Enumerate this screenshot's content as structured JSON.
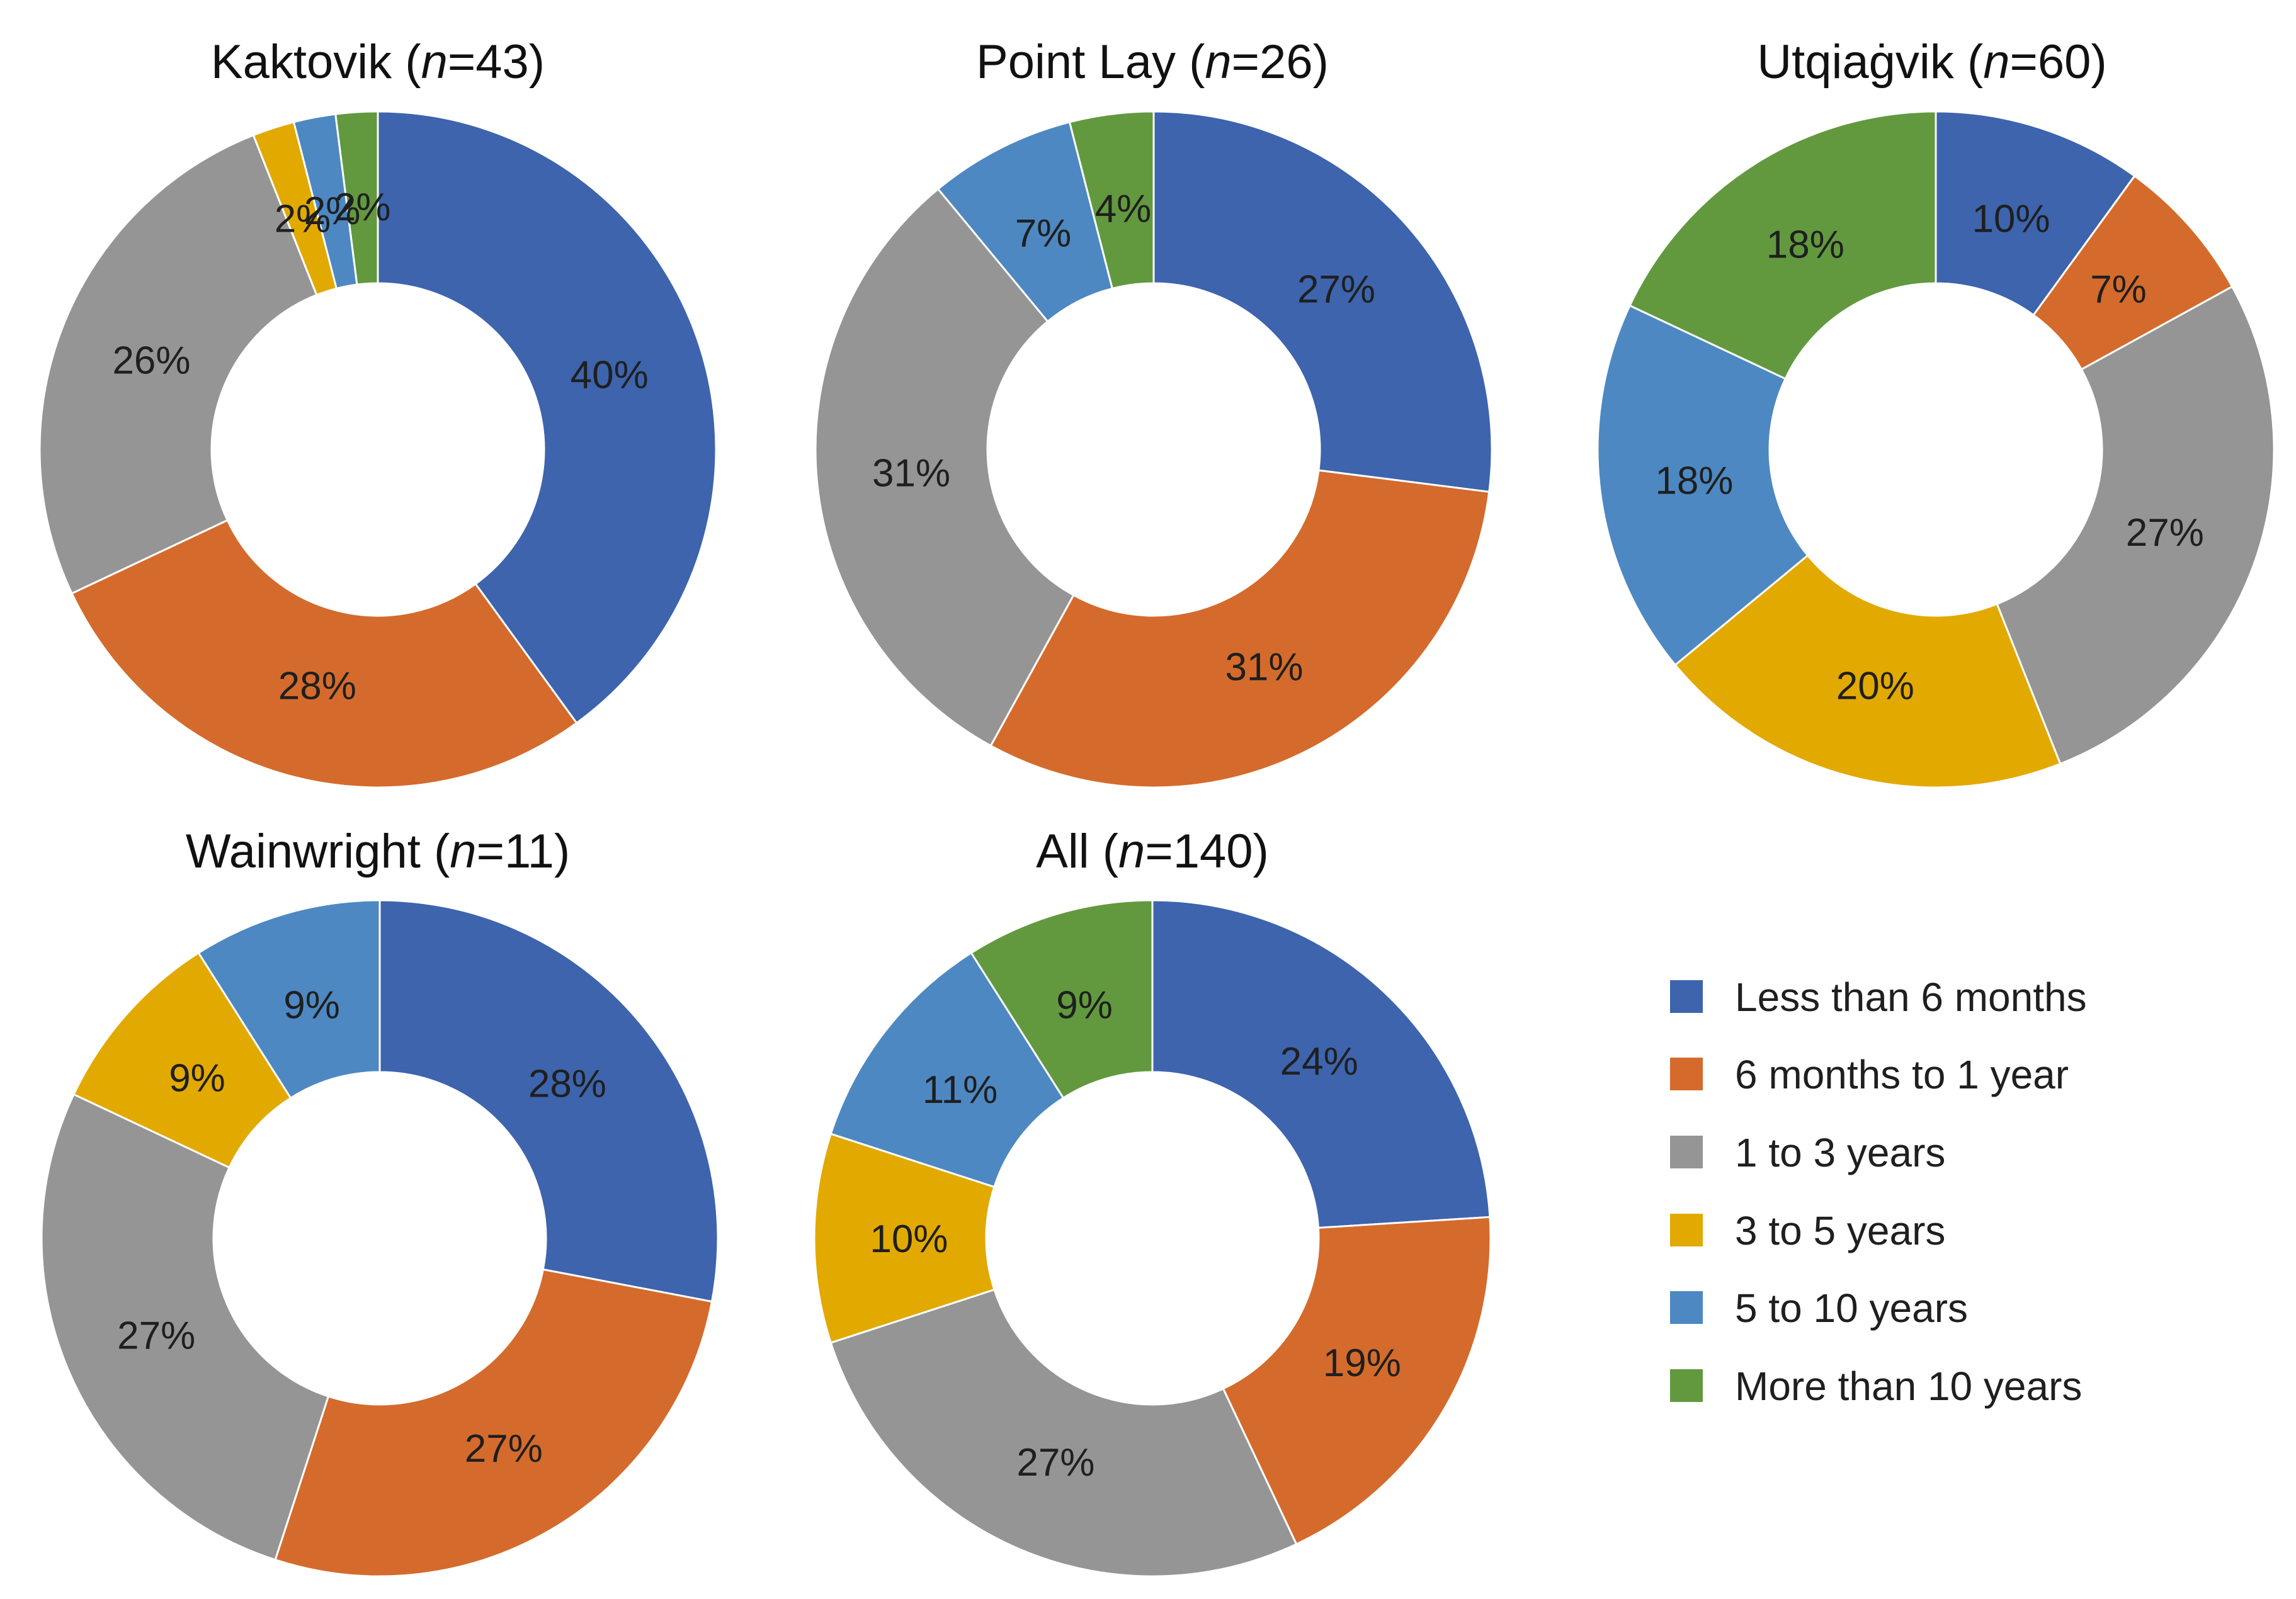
{
  "chart_data": {
    "type": "donut",
    "legend": {
      "placement": "bottom-right",
      "entries": [
        {
          "label": "Less than 6 months",
          "color": "#3d64ad"
        },
        {
          "label": "6 months to 1 year",
          "color": "#d46b2c"
        },
        {
          "label": "1 to 3 years",
          "color": "#959595"
        },
        {
          "label": "3 to 5 years",
          "color": "#e2a900"
        },
        {
          "label": "5 to 10 years",
          "color": "#4d88c2"
        },
        {
          "label": "More than 10 years",
          "color": "#62993e"
        }
      ]
    },
    "charts": [
      {
        "title_prefix": "Kaktovik (",
        "title_var": "n",
        "title_suffix": "=43)",
        "n": 43,
        "values": [
          40,
          28,
          26,
          2,
          2,
          2
        ],
        "labels": [
          "40%",
          "28%",
          "26%",
          "2%",
          "2%",
          "2%"
        ]
      },
      {
        "title_prefix": "Point Lay (",
        "title_var": "n",
        "title_suffix": "=26)",
        "n": 26,
        "values": [
          27,
          31,
          31,
          0,
          7,
          4
        ],
        "labels": [
          "27%",
          "31%",
          "31%",
          "",
          "7%",
          "4%"
        ]
      },
      {
        "title_prefix": "Utqiaġvik (",
        "title_var": "n",
        "title_suffix": "=60)",
        "n": 60,
        "values": [
          10,
          7,
          27,
          20,
          18,
          18
        ],
        "labels": [
          "10%",
          "7%",
          "27%",
          "20%",
          "18%",
          "18%"
        ]
      },
      {
        "title_prefix": "Wainwright (",
        "title_var": "n",
        "title_suffix": "=11)",
        "n": 11,
        "values": [
          28,
          27,
          27,
          9,
          9,
          0
        ],
        "labels": [
          "28%",
          "27%",
          "27%",
          "9%",
          "9%",
          ""
        ]
      },
      {
        "title_prefix": "All (",
        "title_var": "n",
        "title_suffix": "=140)",
        "n": 140,
        "values": [
          24,
          19,
          27,
          10,
          11,
          9
        ],
        "labels": [
          "24%",
          "19%",
          "27%",
          "10%",
          "11%",
          "9%"
        ]
      }
    ]
  }
}
